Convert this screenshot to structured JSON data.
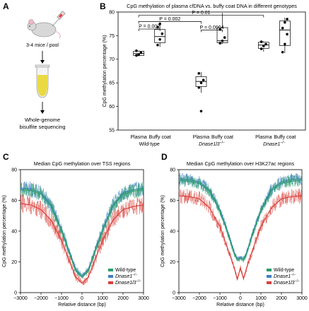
{
  "panels": {
    "A": {
      "letter": "A",
      "mice_label": "3-4 mice / pool",
      "wgbs_line1": "Whole-genome",
      "wgbs_line2": "bisulfite sequencing"
    },
    "B": {
      "letter": "B"
    },
    "C": {
      "letter": "C"
    },
    "D": {
      "letter": "D"
    }
  },
  "colors": {
    "wild_type": "#2a9d6a",
    "dnase1": "#3f7fc1",
    "dnase1l3": "#d9403a",
    "tube_fill": "#e8d83a"
  },
  "chart_data": [
    {
      "id": "B",
      "type": "box",
      "title": "CpG methylation of plasma cfDNA vs. buffy coat DNA in different genotypes",
      "ylabel": "CpG methylation percentage (%)",
      "ylim": [
        55,
        80
      ],
      "yticks": [
        55,
        60,
        65,
        70,
        75,
        80
      ],
      "groups": [
        {
          "label": "Wild-type",
          "label_sup": "",
          "boxes": [
            {
              "name": "Plasma",
              "q1": 70.8,
              "median": 71.2,
              "q3": 71.7,
              "min": 70.6,
              "max": 71.8,
              "points": [
                70.8,
                71.0,
                71.4,
                71.8
              ]
            },
            {
              "name": "Buffy coat",
              "q1": 73.5,
              "median": 74.8,
              "q3": 76.3,
              "min": 72.6,
              "max": 77.8,
              "points": [
                73.0,
                74.2,
                75.4,
                76.8,
                77.5
              ]
            }
          ]
        },
        {
          "label": "Dnase1l3",
          "label_sup": "−/−",
          "boxes": [
            {
              "name": "Plasma",
              "q1": 64.2,
              "median": 65.3,
              "q3": 66.3,
              "min": 62.9,
              "max": 67.3,
              "points": [
                64.0,
                65.0,
                65.6,
                67.0,
                59.0
              ]
            },
            {
              "name": "Buffy coat",
              "q1": 73.5,
              "median": 73.9,
              "q3": 76.7,
              "min": 73.2,
              "max": 79.8,
              "points": [
                73.4,
                73.9,
                74.6,
                76.3
              ]
            }
          ]
        },
        {
          "label": "Dnase1",
          "label_sup": "−/−",
          "boxes": [
            {
              "name": "Plasma",
              "q1": 72.3,
              "median": 73.0,
              "q3": 73.6,
              "min": 71.6,
              "max": 73.8,
              "points": [
                72.2,
                72.8,
                73.2,
                73.7
              ]
            },
            {
              "name": "Buffy coat",
              "q1": 72.9,
              "median": 76.2,
              "q3": 78.1,
              "min": 71.3,
              "max": 78.8,
              "points": [
                71.5,
                73.2,
                75.3,
                76.6,
                77.8,
                78.5
              ]
            }
          ]
        }
      ],
      "comparisons": [
        {
          "label": "P = 0.002",
          "from": [
            0,
            0
          ],
          "to": [
            0,
            1
          ],
          "y": 76.4
        },
        {
          "label": "P = 0.002",
          "from": [
            0,
            0
          ],
          "to": [
            1,
            0
          ],
          "y": 78.0
        },
        {
          "label": "P = 0.0004",
          "from": [
            1,
            0
          ],
          "to": [
            1,
            1
          ],
          "y": 76.2
        },
        {
          "label": "P = 0.01",
          "from": [
            0,
            0
          ],
          "to": [
            2,
            0
          ],
          "y": 79.3
        }
      ]
    },
    {
      "id": "C",
      "type": "line",
      "title": "Median CpG methylation over TSS regions",
      "xlabel": "Relative distance (bp)",
      "ylabel": "CpG methylation percentage (%)",
      "xlim": [
        -3000,
        3000
      ],
      "ylim": [
        0,
        80
      ],
      "xticks": [
        -3000,
        -2000,
        -1000,
        0,
        1000,
        2000,
        3000
      ],
      "yticks": [
        0,
        20,
        40,
        60,
        80
      ],
      "legend": "bottom-right",
      "series": [
        {
          "name": "Wild-type",
          "sup": "",
          "italic": false,
          "noise": 5,
          "x": [
            -3000,
            -2500,
            -2000,
            -1500,
            -1000,
            -600,
            -300,
            0,
            300,
            600,
            1000,
            1500,
            2000,
            2500,
            3000
          ],
          "y": [
            67,
            66.5,
            64,
            56,
            40,
            25,
            14,
            10,
            14,
            25,
            40,
            56,
            64,
            66,
            67
          ]
        },
        {
          "name": "Dnase1",
          "sup": "−/−",
          "italic": true,
          "noise": 5,
          "x": [
            -3000,
            -2500,
            -2000,
            -1500,
            -1000,
            -600,
            -300,
            0,
            300,
            600,
            1000,
            1500,
            2000,
            2500,
            3000
          ],
          "y": [
            68,
            67.5,
            65,
            57,
            41,
            26,
            15,
            11,
            15,
            26,
            41,
            57,
            65,
            67,
            68
          ]
        },
        {
          "name": "Dnase1l3",
          "sup": "−/−",
          "italic": true,
          "noise": 6,
          "x": [
            -3000,
            -2500,
            -2000,
            -1500,
            -1000,
            -600,
            -300,
            0,
            300,
            600,
            1000,
            1500,
            2000,
            2500,
            3000
          ],
          "y": [
            58,
            57,
            54,
            47,
            34,
            20,
            10,
            6,
            10,
            20,
            34,
            47,
            54,
            56,
            57
          ]
        }
      ]
    },
    {
      "id": "D",
      "type": "line",
      "title": "Median CpG methylation over H3K27ac regions",
      "xlabel": "Relative distance (bp)",
      "ylabel": "CpG methylation percentage (%)",
      "xlim": [
        -3000,
        3000
      ],
      "ylim": [
        0,
        80
      ],
      "xticks": [
        -3000,
        -2000,
        -1000,
        0,
        1000,
        2000,
        3000
      ],
      "yticks": [
        0,
        20,
        40,
        60,
        80
      ],
      "legend": "bottom-right",
      "series": [
        {
          "name": "Wild-type",
          "sup": "",
          "italic": false,
          "noise": 4,
          "x": [
            -3000,
            -2500,
            -2000,
            -1500,
            -1000,
            -600,
            -300,
            -150,
            0,
            150,
            300,
            600,
            1000,
            1500,
            2000,
            2500,
            3000
          ],
          "y": [
            73,
            72.5,
            71,
            66,
            53,
            38,
            25,
            21,
            22,
            21,
            25,
            38,
            53,
            66,
            71,
            72.5,
            73
          ]
        },
        {
          "name": "Dnase1",
          "sup": "−/−",
          "italic": true,
          "noise": 4,
          "x": [
            -3000,
            -2500,
            -2000,
            -1500,
            -1000,
            -600,
            -300,
            -150,
            0,
            150,
            300,
            600,
            1000,
            1500,
            2000,
            2500,
            3000
          ],
          "y": [
            74,
            73.5,
            72,
            67,
            54,
            39,
            26,
            22,
            23,
            22,
            26,
            39,
            54,
            67,
            72,
            73.5,
            74
          ]
        },
        {
          "name": "Dnase1l3",
          "sup": "−/−",
          "italic": true,
          "noise": 5,
          "x": [
            -3000,
            -2500,
            -2000,
            -1500,
            -1000,
            -600,
            -300,
            -150,
            0,
            150,
            300,
            600,
            1000,
            1500,
            2000,
            2500,
            3000
          ],
          "y": [
            63,
            62.5,
            61,
            55,
            43,
            28,
            16,
            9,
            16,
            9,
            16,
            28,
            43,
            55,
            61,
            62.5,
            63
          ]
        }
      ]
    }
  ]
}
